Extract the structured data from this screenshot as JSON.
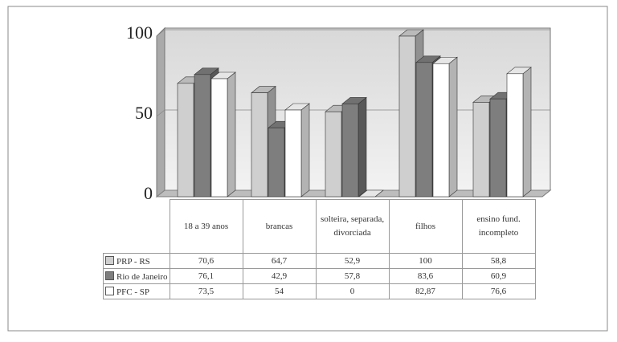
{
  "chart_data": {
    "type": "bar3d",
    "categories": [
      "18 a 39 anos",
      "brancas",
      "solteira, separada, divorciada",
      "filhos",
      "ensino fund. incompleto"
    ],
    "series": [
      {
        "name": "PRP - RS",
        "color": "#cfcfcf",
        "values": [
          70.6,
          64.7,
          52.9,
          100,
          58.8
        ],
        "value_labels": [
          "70,6",
          "64,7",
          "52,9",
          "100",
          "58,8"
        ]
      },
      {
        "name": "Rio de Janeiro",
        "color": "#7e7e7e",
        "values": [
          76.1,
          42.9,
          57.8,
          83.6,
          60.9
        ],
        "value_labels": [
          "76,1",
          "42,9",
          "57,8",
          "83,6",
          "60,9"
        ]
      },
      {
        "name": "PFC - SP",
        "color": "#ffffff",
        "values": [
          73.5,
          54,
          0,
          82.87,
          76.6
        ],
        "value_labels": [
          "73,5",
          "54",
          "0",
          "82,87",
          "76,6"
        ]
      }
    ],
    "ylim": [
      0,
      100
    ],
    "yticks": [
      0,
      50,
      100
    ],
    "grid": true,
    "data_table": true
  }
}
